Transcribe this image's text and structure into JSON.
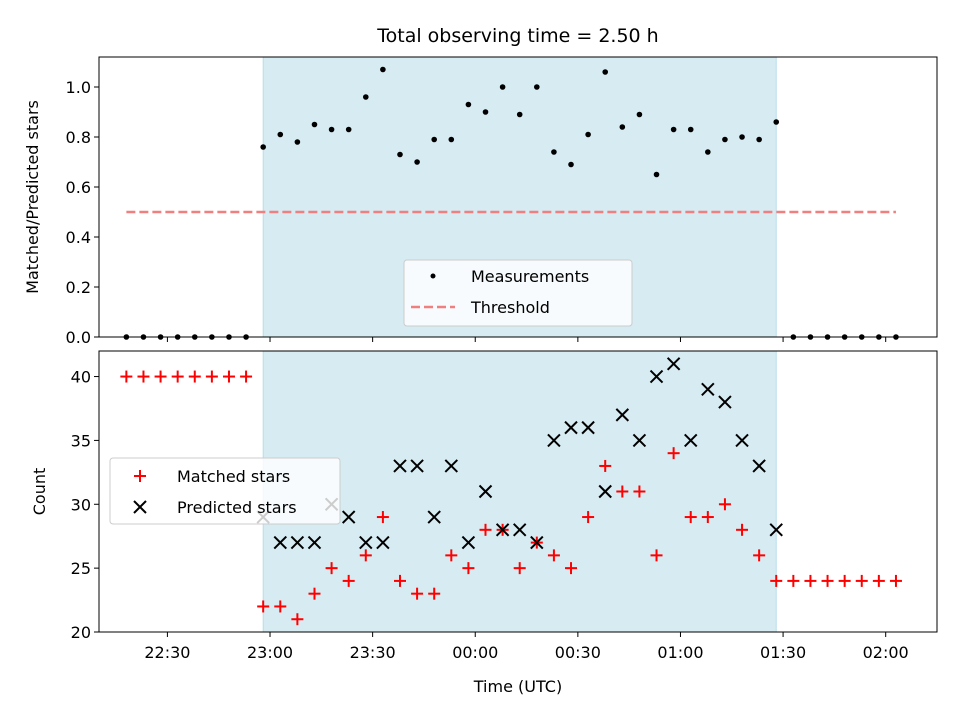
{
  "title": "Total observing time = 2.50 h",
  "colors": {
    "shade": "#add8e6",
    "measurement": "#000000",
    "threshold": "#f08080",
    "matched": "#ff0000",
    "predicted": "#000000"
  },
  "chart_data": [
    {
      "type": "scatter",
      "panel": "top",
      "ylabel": "Matched/Predicted stars",
      "ylim": [
        0,
        1.12
      ],
      "yticks": [
        0.0,
        0.2,
        0.4,
        0.6,
        0.8,
        1.0
      ],
      "ytick_labels": [
        "0.0",
        "0.2",
        "0.4",
        "0.6",
        "0.8",
        "1.0"
      ],
      "xlim": [
        "22:10",
        "02:15"
      ],
      "shaded_interval": [
        "22:58",
        "01:28"
      ],
      "legend_position": "lower center",
      "series": [
        {
          "name": "Measurements",
          "marker": "dot",
          "x": [
            "22:18",
            "22:23",
            "22:28",
            "22:33",
            "22:38",
            "22:43",
            "22:48",
            "22:53",
            "22:58",
            "23:03",
            "23:08",
            "23:13",
            "23:18",
            "23:23",
            "23:28",
            "23:33",
            "23:38",
            "23:43",
            "23:48",
            "23:53",
            "23:58",
            "00:03",
            "00:08",
            "00:13",
            "00:18",
            "00:23",
            "00:28",
            "00:33",
            "00:38",
            "00:43",
            "00:48",
            "00:53",
            "00:58",
            "01:03",
            "01:08",
            "01:13",
            "01:18",
            "01:23",
            "01:28",
            "01:33",
            "01:38",
            "01:43",
            "01:48",
            "01:53",
            "01:58",
            "02:03"
          ],
          "y": [
            0,
            0,
            0,
            0,
            0,
            0,
            0,
            0,
            0.76,
            0.81,
            0.78,
            0.85,
            0.83,
            0.83,
            0.96,
            1.07,
            0.73,
            0.7,
            0.79,
            0.79,
            0.93,
            0.9,
            1.0,
            0.89,
            1.0,
            0.74,
            0.69,
            0.81,
            1.06,
            0.84,
            0.89,
            0.65,
            0.83,
            0.83,
            0.74,
            0.79,
            0.8,
            0.79,
            0.86,
            0,
            0,
            0,
            0,
            0,
            0,
            0
          ]
        },
        {
          "name": "Threshold",
          "marker": "dashed-line",
          "x": [
            "22:18",
            "02:03"
          ],
          "y": [
            0.5,
            0.5
          ]
        }
      ]
    },
    {
      "type": "scatter",
      "panel": "bottom",
      "xlabel": "Time (UTC)",
      "ylabel": "Count",
      "ylim": [
        20,
        42
      ],
      "yticks": [
        20,
        25,
        30,
        35,
        40
      ],
      "ytick_labels": [
        "20",
        "25",
        "30",
        "35",
        "40"
      ],
      "xlim": [
        "22:10",
        "02:15"
      ],
      "xticks": [
        "22:30",
        "23:00",
        "23:30",
        "00:00",
        "00:30",
        "01:00",
        "01:30",
        "02:00"
      ],
      "xtick_labels": [
        "22:30",
        "23:00",
        "23:30",
        "00:00",
        "00:30",
        "01:00",
        "01:30",
        "02:00"
      ],
      "shaded_interval": [
        "22:58",
        "01:28"
      ],
      "legend_position": "center left",
      "series": [
        {
          "name": "Matched stars",
          "marker": "plus",
          "x": [
            "22:18",
            "22:23",
            "22:28",
            "22:33",
            "22:38",
            "22:43",
            "22:48",
            "22:53",
            "22:58",
            "23:03",
            "23:08",
            "23:13",
            "23:18",
            "23:23",
            "23:28",
            "23:33",
            "23:38",
            "23:43",
            "23:48",
            "23:53",
            "23:58",
            "00:03",
            "00:08",
            "00:13",
            "00:18",
            "00:23",
            "00:28",
            "00:33",
            "00:38",
            "00:43",
            "00:48",
            "00:53",
            "00:58",
            "01:03",
            "01:08",
            "01:13",
            "01:18",
            "01:23",
            "01:28",
            "01:33",
            "01:38",
            "01:43",
            "01:48",
            "01:53",
            "01:58",
            "02:03"
          ],
          "y": [
            40,
            40,
            40,
            40,
            40,
            40,
            40,
            40,
            22,
            22,
            21,
            23,
            25,
            24,
            26,
            29,
            24,
            23,
            23,
            26,
            25,
            28,
            28,
            25,
            27,
            26,
            25,
            29,
            33,
            31,
            31,
            26,
            34,
            29,
            29,
            30,
            28,
            26,
            24,
            24,
            24,
            24,
            24,
            24,
            24,
            24
          ]
        },
        {
          "name": "Predicted stars",
          "marker": "x",
          "x": [
            "22:58",
            "23:03",
            "23:08",
            "23:13",
            "23:18",
            "23:23",
            "23:28",
            "23:33",
            "23:38",
            "23:43",
            "23:48",
            "23:53",
            "23:58",
            "00:03",
            "00:08",
            "00:13",
            "00:18",
            "00:23",
            "00:28",
            "00:33",
            "00:38",
            "00:43",
            "00:48",
            "00:53",
            "00:58",
            "01:03",
            "01:08",
            "01:13",
            "01:18",
            "01:23",
            "01:28"
          ],
          "y": [
            29,
            27,
            27,
            27,
            30,
            29,
            27,
            27,
            33,
            33,
            29,
            33,
            27,
            31,
            28,
            28,
            27,
            35,
            36,
            36,
            31,
            37,
            35,
            40,
            41,
            35,
            39,
            38,
            35,
            33,
            28
          ]
        }
      ]
    }
  ]
}
